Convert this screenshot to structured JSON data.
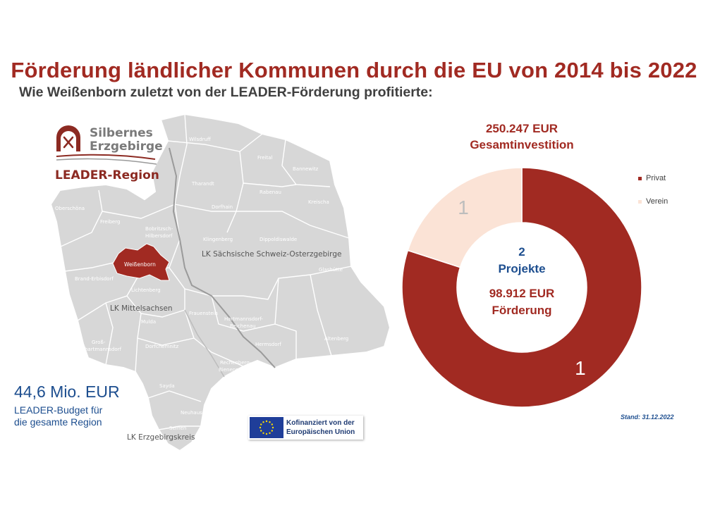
{
  "header": {
    "title": "Förderung ländlicher Kommunen durch die EU von 2014 bis 2022",
    "subtitle": "Wie Weißenborn zuletzt von der LEADER-Förderung profitierte:"
  },
  "logo": {
    "line1": "Silbernes",
    "line2": "Erzgebirge",
    "region": "LEADER-Region"
  },
  "map": {
    "highlight": "Weißenborn",
    "places": [
      "Wilsdruff",
      "Freital",
      "Bannewitz",
      "Tharandt",
      "Rabenau",
      "Oberschöna",
      "Dorfhain",
      "Kreischa",
      "Freiberg",
      "Bobritzsch-",
      "Hilbersdorf",
      "Klingenberg",
      "Dippoldiswalde",
      "Glashütte",
      "Brand-Erbisdorf",
      "Lichtenberg",
      "Frauenstein",
      "Mulda",
      "Hartmannsdorf-",
      "Reichenau",
      "Groß-",
      "hartmannsdorf",
      "Dorfchemnitz",
      "Hermsdorf",
      "Altenberg",
      "Rechenberg-",
      "Bienenmühle",
      "Sayda",
      "Neuhausen",
      "Seiffen"
    ],
    "districts": [
      "LK Sächsische Schweiz-Osterzgebirge",
      "LK Mittelsachsen",
      "LK Erzgebirgskreis"
    ],
    "highlight_color": "#a12a22"
  },
  "budget": {
    "amount": "44,6 Mio. EUR",
    "line1": "LEADER-Budget für",
    "line2": "die gesamte Region"
  },
  "eu": {
    "line1": "Kofinanziert von der",
    "line2": "Europäischen Union"
  },
  "chart_data": {
    "type": "pie",
    "title_line1": "250.247 EUR",
    "title_line2": "Gesamtinvestition",
    "categories": [
      "Privat",
      "Verein"
    ],
    "values": [
      1,
      1
    ],
    "shares": [
      0.8,
      0.2
    ],
    "data_labels": [
      "1",
      "1"
    ],
    "colors": [
      "#a12a22",
      "#fbe3d6"
    ],
    "center": {
      "projects_count": "2",
      "projects_label": "Projekte",
      "funding_amount": "98.912 EUR",
      "funding_label": "Förderung"
    },
    "legend_position": "right"
  },
  "footer": {
    "stand": "Stand: 31.12.2022"
  }
}
